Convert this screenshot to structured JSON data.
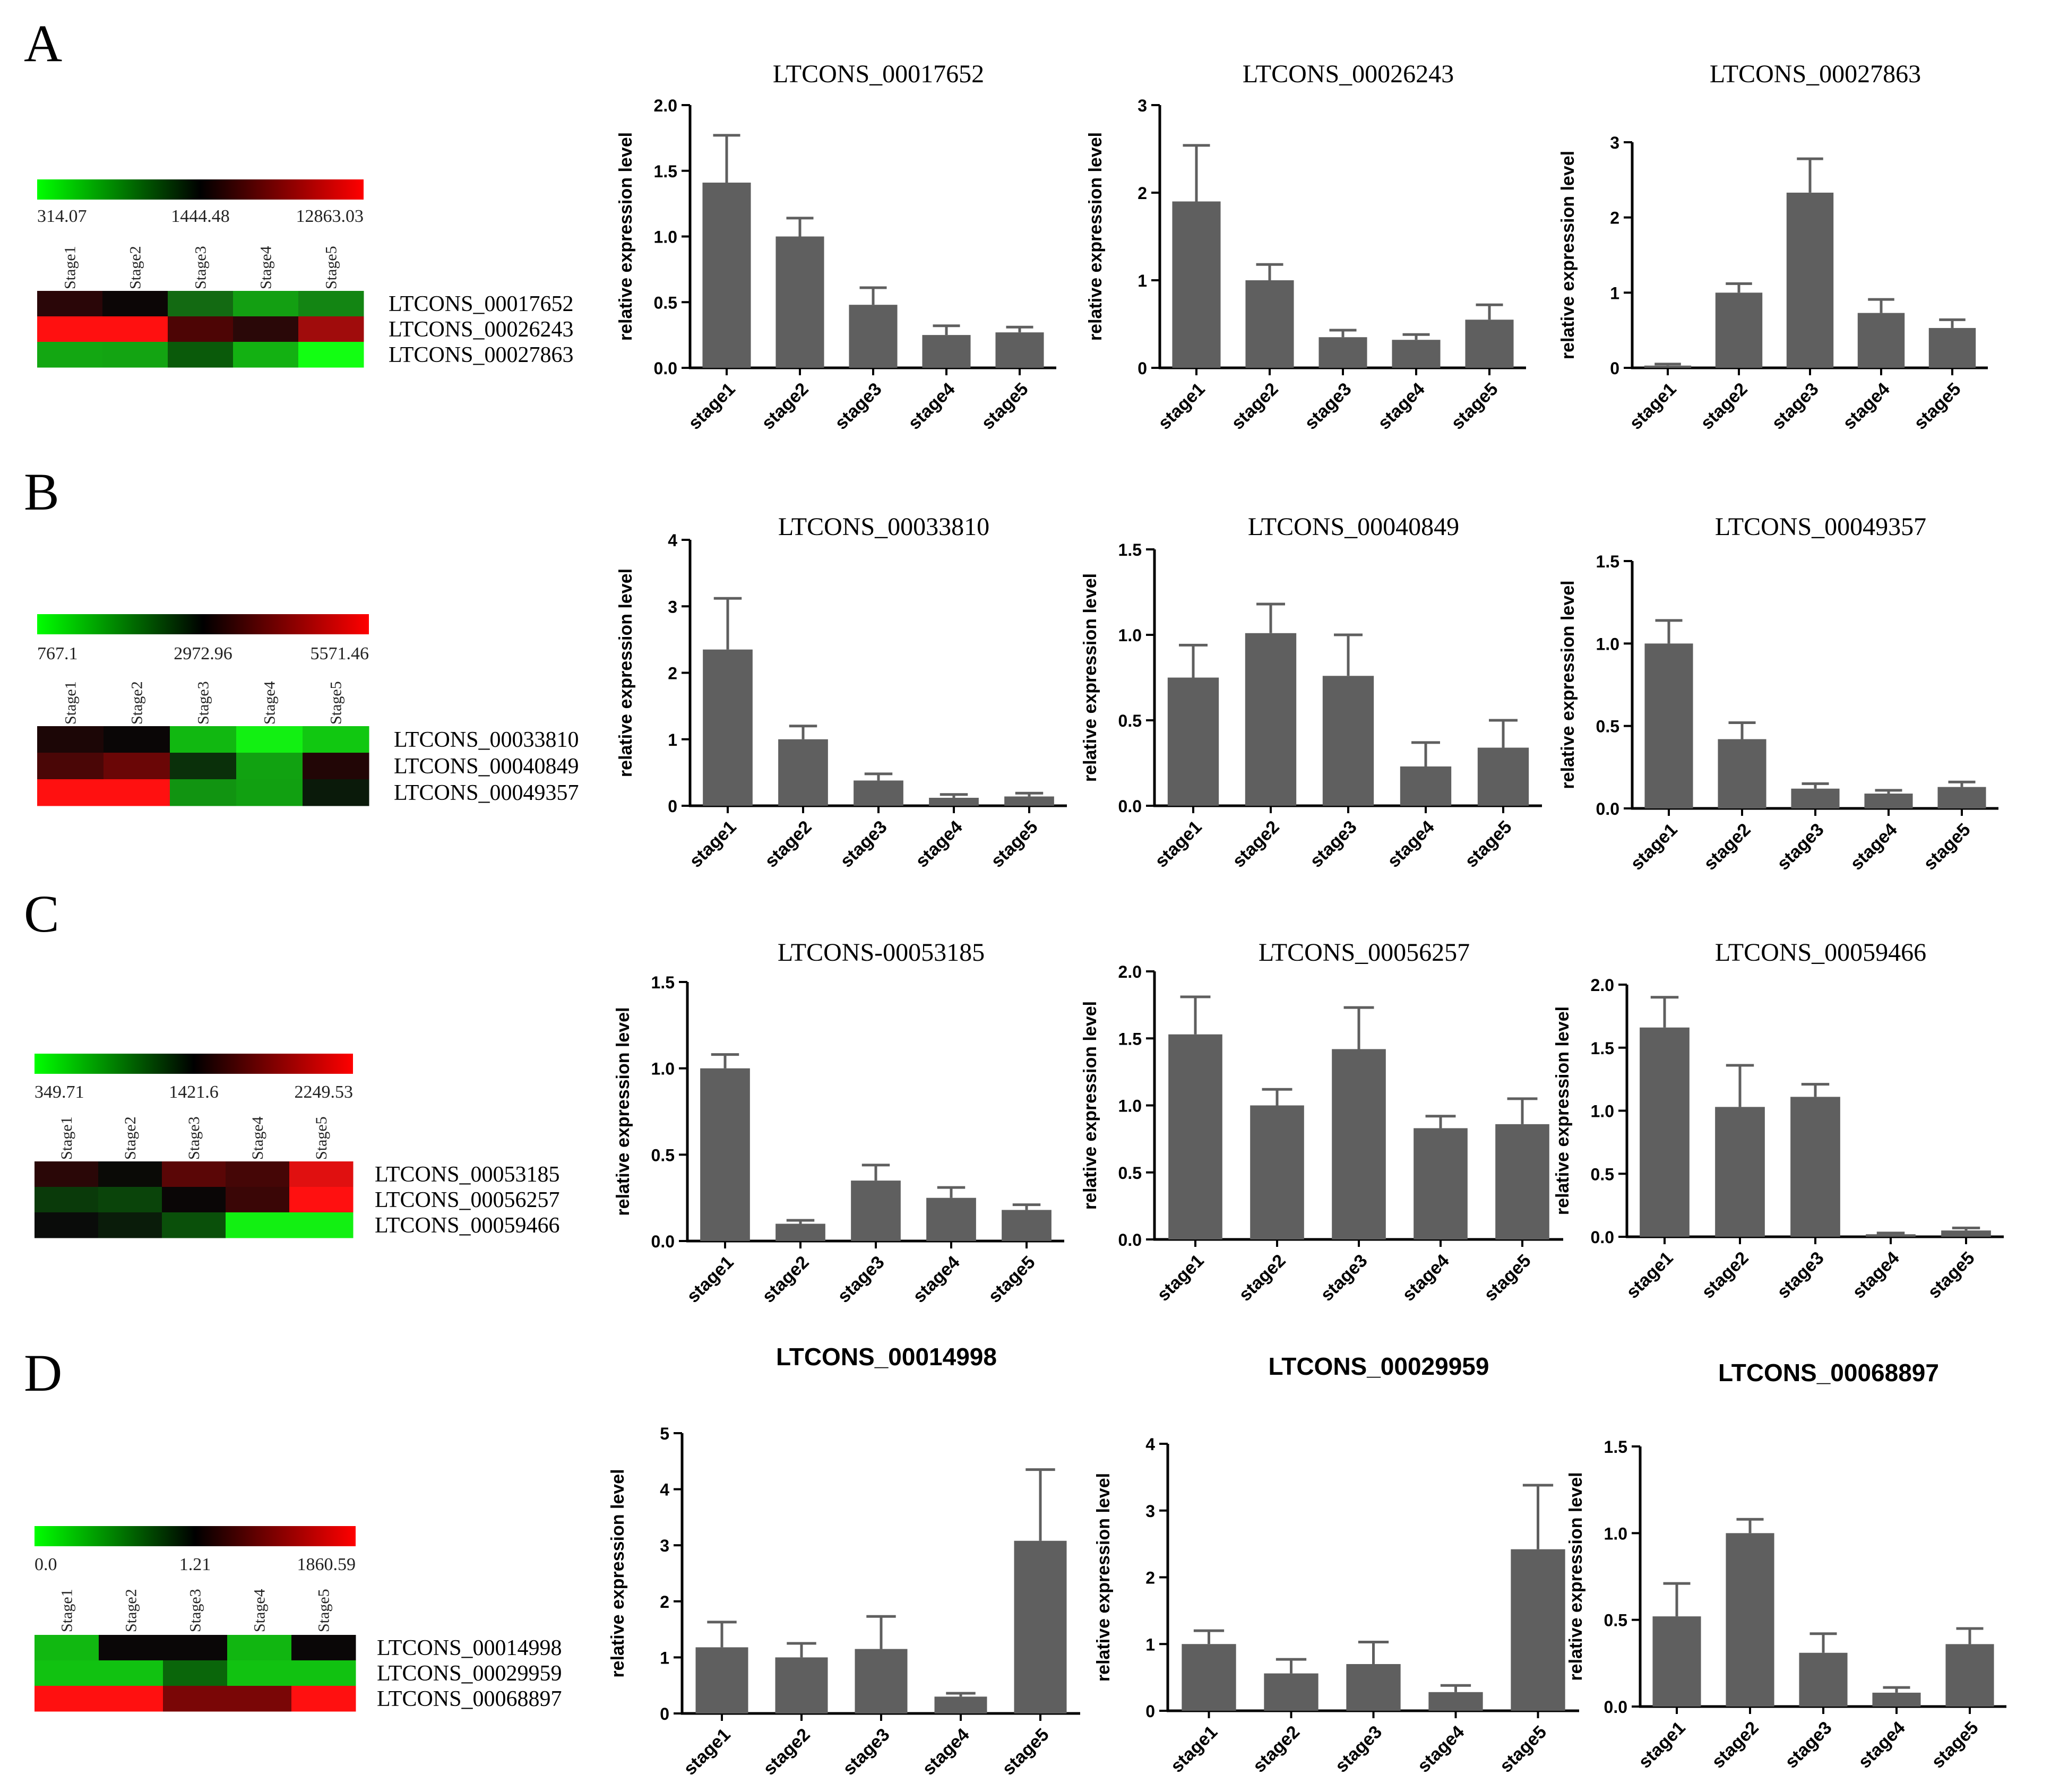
{
  "panels": [
    {
      "letter": "A",
      "heatmap": {
        "scale_labels": [
          "314.07",
          "1444.48",
          "12863.03"
        ],
        "col_labels": [
          "Stage1",
          "Stage2",
          "Stage3",
          "Stage4",
          "Stage5"
        ],
        "row_labels": [
          "LTCONS_00017652",
          "LTCONS_00026243",
          "LTCONS_00027863"
        ],
        "cells": [
          [
            "#2a0608",
            "#0c0606",
            "#136a12",
            "#139f12",
            "#138513"
          ],
          [
            "#ff1010",
            "#ff1010",
            "#4d0505",
            "#2a0808",
            "#a00c0c"
          ],
          [
            "#13a712",
            "#13a412",
            "#0a5a0a",
            "#13b112",
            "#12ff12"
          ]
        ]
      },
      "charts": [
        {
          "title": "LTCONS_00017652",
          "title_bold": false,
          "ylabel": "relative expression level",
          "ylim": [
            0,
            2.0
          ],
          "ticks": [
            "0.0",
            "0.5",
            "1.0",
            "1.5",
            "2.0"
          ],
          "categories": [
            "stage1",
            "stage2",
            "stage3",
            "stage4",
            "stage5"
          ],
          "values": [
            1.41,
            1.0,
            0.48,
            0.25,
            0.27
          ],
          "errors": [
            0.36,
            0.14,
            0.13,
            0.07,
            0.04
          ]
        },
        {
          "title": "LTCONS_00026243",
          "title_bold": false,
          "ylabel": "relative expression level",
          "ylim": [
            0,
            3
          ],
          "ticks": [
            "0",
            "1",
            "2",
            "3"
          ],
          "categories": [
            "stage1",
            "stage2",
            "stage3",
            "stage4",
            "stage5"
          ],
          "values": [
            1.9,
            1.0,
            0.35,
            0.32,
            0.55
          ],
          "errors": [
            0.64,
            0.18,
            0.08,
            0.06,
            0.17
          ]
        },
        {
          "title": "LTCONS_00027863",
          "title_bold": false,
          "ylabel": "relative expression level",
          "ylim": [
            0,
            3
          ],
          "ticks": [
            "0",
            "1",
            "2",
            "3"
          ],
          "categories": [
            "stage1",
            "stage2",
            "stage3",
            "stage4",
            "stage5"
          ],
          "values": [
            0.03,
            1.0,
            2.33,
            0.73,
            0.53
          ],
          "errors": [
            0.02,
            0.12,
            0.45,
            0.18,
            0.11
          ]
        }
      ]
    },
    {
      "letter": "B",
      "heatmap": {
        "scale_labels": [
          "767.1",
          "2972.96",
          "5571.46"
        ],
        "col_labels": [
          "Stage1",
          "Stage2",
          "Stage3",
          "Stage4",
          "Stage5"
        ],
        "row_labels": [
          "LTCONS_00033810",
          "LTCONS_00040849",
          "LTCONS_00049357"
        ],
        "cells": [
          [
            "#1c0606",
            "#0a0606",
            "#11b811",
            "#12f012",
            "#11c811"
          ],
          [
            "#4a0606",
            "#6a0606",
            "#0a300a",
            "#11a211",
            "#220606"
          ],
          [
            "#ff1010",
            "#ff1010",
            "#119411",
            "#11a011",
            "#0a1a0a"
          ]
        ]
      },
      "charts": [
        {
          "title": "LTCONS_00033810",
          "title_bold": false,
          "ylabel": "relative expression level",
          "ylim": [
            0,
            4
          ],
          "ticks": [
            "0",
            "1",
            "2",
            "3",
            "4"
          ],
          "categories": [
            "stage1",
            "stage2",
            "stage3",
            "stage4",
            "stage5"
          ],
          "values": [
            2.35,
            1.0,
            0.38,
            0.12,
            0.14
          ],
          "errors": [
            0.77,
            0.2,
            0.1,
            0.05,
            0.05
          ]
        },
        {
          "title": "LTCONS_00040849",
          "title_bold": false,
          "ylabel": "relative expression level",
          "ylim": [
            0,
            1.5
          ],
          "ticks": [
            "0.0",
            "0.5",
            "1.0",
            "1.5"
          ],
          "categories": [
            "stage1",
            "stage2",
            "stage3",
            "stage4",
            "stage5"
          ],
          "values": [
            0.75,
            1.01,
            0.76,
            0.23,
            0.34
          ],
          "errors": [
            0.19,
            0.17,
            0.24,
            0.14,
            0.16
          ]
        },
        {
          "title": "LTCONS_00049357",
          "title_bold": false,
          "ylabel": "relative expression level",
          "ylim": [
            0,
            1.5
          ],
          "ticks": [
            "0.0",
            "0.5",
            "1.0",
            "1.5"
          ],
          "categories": [
            "stage1",
            "stage2",
            "stage3",
            "stage4",
            "stage5"
          ],
          "values": [
            1.0,
            0.42,
            0.12,
            0.09,
            0.13
          ],
          "errors": [
            0.14,
            0.1,
            0.03,
            0.02,
            0.03
          ]
        }
      ]
    },
    {
      "letter": "C",
      "heatmap": {
        "scale_labels": [
          "349.71",
          "1421.6",
          "2249.53"
        ],
        "col_labels": [
          "Stage1",
          "Stage2",
          "Stage3",
          "Stage4",
          "Stage5"
        ],
        "row_labels": [
          "LTCONS_00053185",
          "LTCONS_00056257",
          "LTCONS_00059466"
        ],
        "cells": [
          [
            "#2a0707",
            "#0a0a06",
            "#5a0606",
            "#450606",
            "#e01010"
          ],
          [
            "#0a3a0a",
            "#0a440a",
            "#0a0606",
            "#3a0606",
            "#ff1010"
          ],
          [
            "#0a0c0a",
            "#0a1c0a",
            "#0a500a",
            "#12f012",
            "#12f012"
          ]
        ]
      },
      "charts": [
        {
          "title": "LTCONS-00053185",
          "title_bold": false,
          "ylabel": "relative expression level",
          "ylim": [
            0,
            1.5
          ],
          "ticks": [
            "0.0",
            "0.5",
            "1.0",
            "1.5"
          ],
          "categories": [
            "stage1",
            "stage2",
            "stage3",
            "stage4",
            "stage5"
          ],
          "values": [
            1.0,
            0.1,
            0.35,
            0.25,
            0.18
          ],
          "errors": [
            0.08,
            0.02,
            0.09,
            0.06,
            0.03
          ]
        },
        {
          "title": "LTCONS_00056257",
          "title_bold": false,
          "ylabel": "relative expression level",
          "ylim": [
            0,
            2.0
          ],
          "ticks": [
            "0.0",
            "0.5",
            "1.0",
            "1.5",
            "2.0"
          ],
          "categories": [
            "stage1",
            "stage2",
            "stage3",
            "stage4",
            "stage5"
          ],
          "values": [
            1.53,
            1.0,
            1.42,
            0.83,
            0.86
          ],
          "errors": [
            0.28,
            0.12,
            0.31,
            0.09,
            0.19
          ]
        },
        {
          "title": "LTCONS_00059466",
          "title_bold": false,
          "ylabel": "relative expression level",
          "ylim": [
            0,
            2.0
          ],
          "ticks": [
            "0.0",
            "0.5",
            "1.0",
            "1.5",
            "2.0"
          ],
          "categories": [
            "stage1",
            "stage2",
            "stage3",
            "stage4",
            "stage5"
          ],
          "values": [
            1.66,
            1.03,
            1.11,
            0.02,
            0.05
          ],
          "errors": [
            0.24,
            0.33,
            0.1,
            0.01,
            0.02
          ]
        }
      ]
    },
    {
      "letter": "D",
      "heatmap": {
        "scale_labels": [
          "0.0",
          "1.21",
          "1860.59"
        ],
        "col_labels": [
          "Stage1",
          "Stage2",
          "Stage3",
          "Stage4",
          "Stage5"
        ],
        "row_labels": [
          "LTCONS_00014998",
          "LTCONS_00029959",
          "LTCONS_00068897"
        ],
        "cells": [
          [
            "#11b811",
            "#0a0707",
            "#0a0707",
            "#11b611",
            "#0a0707"
          ],
          [
            "#11c211",
            "#11c211",
            "#0a660a",
            "#11c211",
            "#11c211"
          ],
          [
            "#ff1010",
            "#ff1010",
            "#7a0606",
            "#7a0606",
            "#ff1010"
          ]
        ]
      },
      "charts": [
        {
          "title": "LTCONS_00014998",
          "title_bold": true,
          "ylabel": "relative expression level",
          "ylim": [
            0,
            5
          ],
          "ticks": [
            "0",
            "1",
            "2",
            "3",
            "4",
            "5"
          ],
          "categories": [
            "stage1",
            "stage2",
            "stage3",
            "stage4",
            "stage5"
          ],
          "values": [
            1.18,
            1.0,
            1.15,
            0.3,
            3.08
          ],
          "errors": [
            0.45,
            0.25,
            0.58,
            0.06,
            1.27
          ]
        },
        {
          "title": "LTCONS_00029959",
          "title_bold": true,
          "ylabel": "relative expression level",
          "ylim": [
            0,
            4
          ],
          "ticks": [
            "0",
            "1",
            "2",
            "3",
            "4"
          ],
          "categories": [
            "stage1",
            "stage2",
            "stage3",
            "stage4",
            "stage5"
          ],
          "values": [
            1.0,
            0.56,
            0.7,
            0.28,
            2.42
          ],
          "errors": [
            0.2,
            0.21,
            0.33,
            0.1,
            0.96
          ]
        },
        {
          "title": "LTCONS_00068897",
          "title_bold": true,
          "ylabel": "relative expression level",
          "ylim": [
            0,
            1.5
          ],
          "ticks": [
            "0.0",
            "0.5",
            "1.0",
            "1.5"
          ],
          "categories": [
            "stage1",
            "stage2",
            "stage3",
            "stage4",
            "stage5"
          ],
          "values": [
            0.52,
            1.0,
            0.31,
            0.08,
            0.36
          ],
          "errors": [
            0.19,
            0.08,
            0.11,
            0.03,
            0.09
          ]
        }
      ]
    }
  ],
  "colors": {
    "bar": "#5f5f5f",
    "axis": "#000000",
    "scale_low": "#00ff00",
    "scale_mid": "#000000",
    "scale_high": "#ff0000"
  }
}
